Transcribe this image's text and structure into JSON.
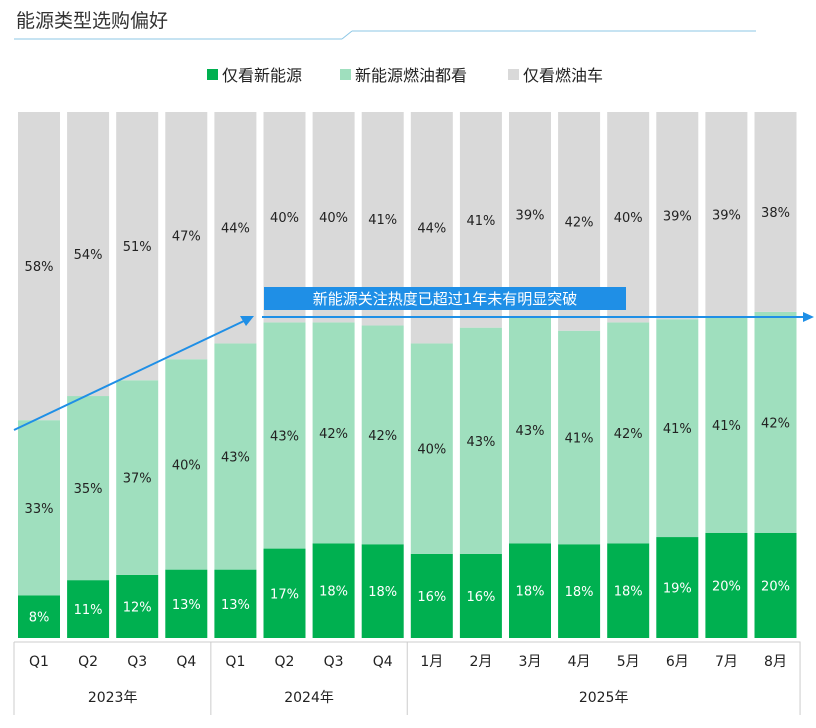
{
  "page": {
    "title": "能源类型选购偏好"
  },
  "annotation": {
    "text": "新能源关注热度已超过1年未有明显突破"
  },
  "colors": {
    "ev_only": "#00b050",
    "both": "#9fdfbe",
    "ice_only": "#d9d9d9",
    "accent": "#1f8fe6"
  },
  "chart_data": {
    "type": "bar",
    "stacked": true,
    "percent": true,
    "title": "能源类型选购偏好",
    "categories": [
      "Q1",
      "Q2",
      "Q3",
      "Q4",
      "Q1",
      "Q2",
      "Q3",
      "Q4",
      "1月",
      "2月",
      "3月",
      "4月",
      "5月",
      "6月",
      "7月",
      "8月"
    ],
    "groups": [
      {
        "label": "2023年",
        "count": 4
      },
      {
        "label": "2024年",
        "count": 4
      },
      {
        "label": "2025年",
        "count": 8
      }
    ],
    "series": [
      {
        "name": "仅看新能源",
        "values": [
          8,
          11,
          12,
          13,
          13,
          17,
          18,
          18,
          16,
          16,
          18,
          18,
          18,
          19,
          20,
          20
        ]
      },
      {
        "name": "新能源燃油都看",
        "values": [
          33,
          35,
          37,
          40,
          43,
          43,
          42,
          42,
          40,
          43,
          43,
          41,
          42,
          41,
          41,
          42
        ]
      },
      {
        "name": "仅看燃油车",
        "values": [
          58,
          54,
          51,
          47,
          44,
          40,
          40,
          41,
          44,
          41,
          39,
          42,
          40,
          39,
          39,
          38
        ]
      }
    ],
    "legend": "top-center",
    "ylim": [
      0,
      100
    ]
  }
}
